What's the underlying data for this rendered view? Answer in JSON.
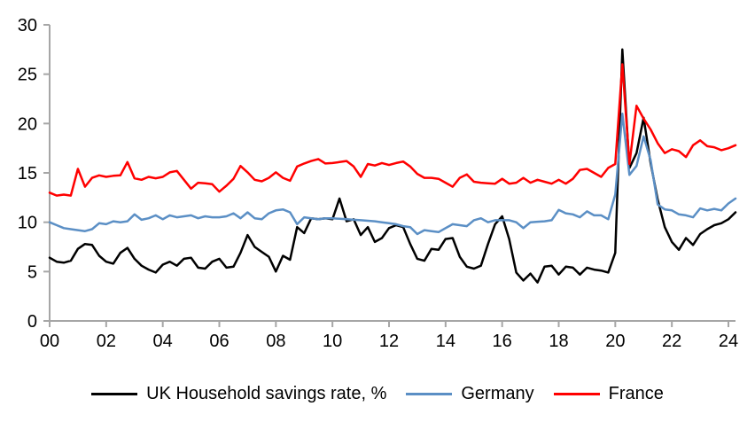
{
  "chart_data": {
    "type": "line",
    "title": "",
    "frequency": "quarterly",
    "x_start_year": 2000,
    "x_end_point": "2024 Q2",
    "background_color": "#ffffff",
    "axis_color": "#a6a6a6",
    "tick_label_color": "#000000",
    "grid": "off",
    "legend_position": "bottom-center",
    "x_axis": {
      "tick_labels": [
        "00",
        "02",
        "04",
        "06",
        "08",
        "10",
        "12",
        "14",
        "16",
        "18",
        "20",
        "22",
        "24"
      ],
      "tick_years": [
        0,
        2,
        4,
        6,
        8,
        10,
        12,
        14,
        16,
        18,
        20,
        22,
        24
      ],
      "range_years": [
        0,
        24.25
      ]
    },
    "y_axis": {
      "tick_labels": [
        "0",
        "5",
        "10",
        "15",
        "20",
        "25",
        "30"
      ],
      "ticks": [
        0,
        5,
        10,
        15,
        20,
        25,
        30
      ],
      "range": [
        0,
        30
      ]
    },
    "series": [
      {
        "name": "UK Household savings rate, %",
        "color": "#000000",
        "values": [
          6.4,
          6.0,
          5.9,
          6.1,
          7.3,
          7.8,
          7.7,
          6.6,
          6.0,
          5.8,
          6.9,
          7.4,
          6.3,
          5.6,
          5.2,
          4.9,
          5.7,
          6.0,
          5.6,
          6.3,
          6.4,
          5.4,
          5.3,
          6.0,
          6.3,
          5.4,
          5.5,
          6.9,
          8.7,
          7.5,
          7.0,
          6.5,
          5.0,
          6.6,
          6.2,
          9.5,
          8.9,
          10.4,
          10.3,
          10.4,
          10.3,
          12.4,
          10.1,
          10.3,
          8.7,
          9.5,
          8.0,
          8.4,
          9.4,
          9.7,
          9.5,
          7.8,
          6.3,
          6.1,
          7.3,
          7.2,
          8.3,
          8.4,
          6.5,
          5.5,
          5.3,
          5.6,
          7.8,
          9.8,
          10.6,
          8.3,
          4.9,
          4.1,
          4.8,
          3.9,
          5.5,
          5.6,
          4.7,
          5.5,
          5.4,
          4.7,
          5.4,
          5.2,
          5.1,
          4.9,
          6.9,
          27.5,
          15.5,
          17.0,
          20.6,
          16.0,
          12.3,
          9.5,
          8.0,
          7.2,
          8.4,
          7.7,
          8.8,
          9.3,
          9.7,
          9.9,
          10.3,
          11.0
        ]
      },
      {
        "name": "Germany",
        "color": "#5b8fc5",
        "values": [
          10.0,
          9.7,
          9.4,
          9.3,
          9.2,
          9.1,
          9.3,
          9.9,
          9.8,
          10.1,
          10.0,
          10.1,
          10.8,
          10.25,
          10.4,
          10.7,
          10.3,
          10.7,
          10.5,
          10.6,
          10.7,
          10.4,
          10.6,
          10.5,
          10.5,
          10.6,
          10.9,
          10.4,
          11.0,
          10.4,
          10.3,
          10.9,
          11.2,
          11.3,
          11.0,
          9.8,
          10.5,
          10.4,
          10.3,
          10.4,
          10.4,
          10.35,
          10.3,
          10.25,
          10.2,
          10.15,
          10.1,
          10.0,
          9.9,
          9.8,
          9.6,
          9.5,
          8.8,
          9.2,
          9.1,
          9.0,
          9.4,
          9.8,
          9.7,
          9.6,
          10.2,
          10.4,
          10.0,
          10.2,
          10.2,
          10.2,
          10.0,
          9.4,
          10.0,
          10.05,
          10.1,
          10.2,
          11.25,
          10.9,
          10.8,
          10.5,
          11.1,
          10.7,
          10.7,
          10.3,
          12.8,
          21.0,
          14.8,
          15.7,
          18.7,
          16.3,
          11.8,
          11.3,
          11.2,
          10.8,
          10.7,
          10.5,
          11.4,
          11.2,
          11.35,
          11.2,
          11.9,
          12.4
        ]
      },
      {
        "name": "France",
        "color": "#ff0000",
        "values": [
          13.0,
          12.7,
          12.8,
          12.7,
          15.4,
          13.6,
          14.5,
          14.75,
          14.6,
          14.7,
          14.75,
          16.1,
          14.45,
          14.3,
          14.6,
          14.45,
          14.6,
          15.05,
          15.2,
          14.3,
          13.4,
          14.0,
          13.95,
          13.85,
          13.1,
          13.7,
          14.4,
          15.7,
          15.05,
          14.3,
          14.15,
          14.5,
          15.05,
          14.5,
          14.2,
          15.65,
          15.95,
          16.2,
          16.4,
          15.95,
          16.0,
          16.1,
          16.2,
          15.65,
          14.6,
          15.9,
          15.75,
          16.0,
          15.8,
          16.0,
          16.15,
          15.65,
          14.9,
          14.5,
          14.5,
          14.4,
          14.0,
          13.6,
          14.5,
          14.85,
          14.1,
          14.0,
          13.95,
          13.9,
          14.4,
          13.9,
          14.0,
          14.5,
          14.0,
          14.3,
          14.1,
          13.9,
          14.3,
          13.9,
          14.4,
          15.3,
          15.4,
          15.0,
          14.6,
          15.5,
          15.9,
          26.0,
          15.9,
          21.8,
          20.5,
          19.4,
          18.0,
          17.0,
          17.4,
          17.2,
          16.6,
          17.8,
          18.3,
          17.7,
          17.6,
          17.3,
          17.5,
          17.8
        ]
      }
    ]
  }
}
